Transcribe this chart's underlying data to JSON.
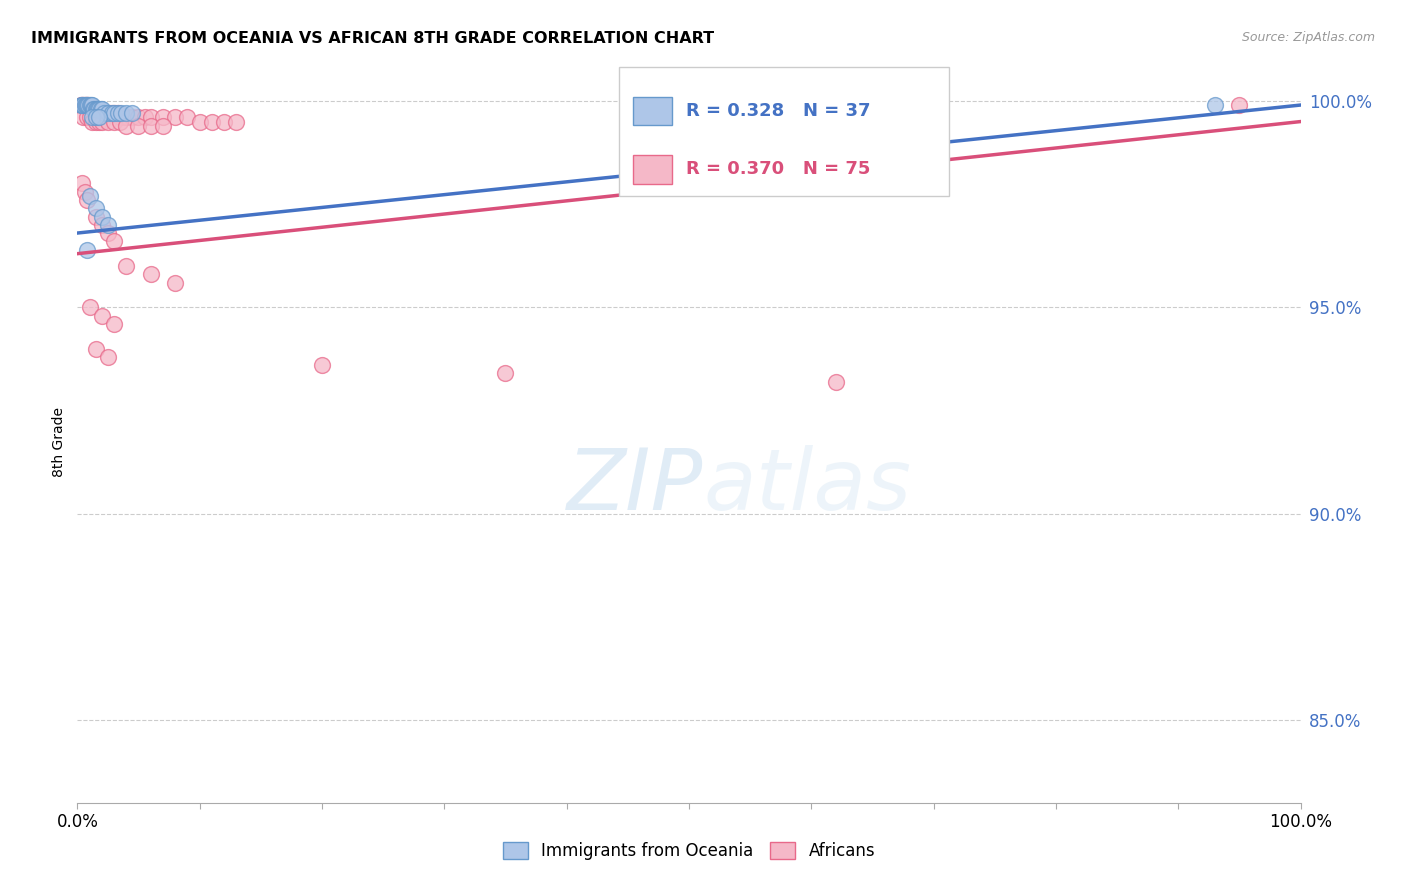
{
  "title": "IMMIGRANTS FROM OCEANIA VS AFRICAN 8TH GRADE CORRELATION CHART",
  "source": "Source: ZipAtlas.com",
  "legend_label1": "Immigrants from Oceania",
  "legend_label2": "Africans",
  "color_oceania_fill": "#aec6e8",
  "color_oceania_edge": "#6699cc",
  "color_african_fill": "#f5b8c8",
  "color_african_edge": "#e8698a",
  "color_line_oceania": "#4472c4",
  "color_line_african": "#d94f7a",
  "background_color": "#ffffff",
  "grid_color": "#cccccc",
  "xlim": [
    0.0,
    1.0
  ],
  "ylim": [
    0.83,
    1.005
  ],
  "oceania_x": [
    0.003,
    0.004,
    0.005,
    0.006,
    0.007,
    0.008,
    0.009,
    0.01,
    0.011,
    0.012,
    0.013,
    0.014,
    0.015,
    0.016,
    0.017,
    0.018,
    0.019,
    0.02,
    0.022,
    0.025,
    0.028,
    0.03,
    0.033,
    0.036,
    0.04,
    0.045,
    0.012,
    0.015,
    0.018,
    0.01,
    0.015,
    0.02,
    0.025,
    0.008,
    0.62,
    0.93
  ],
  "oceania_y": [
    0.999,
    0.999,
    0.999,
    0.999,
    0.999,
    0.999,
    0.999,
    0.999,
    0.999,
    0.999,
    0.998,
    0.998,
    0.998,
    0.998,
    0.998,
    0.998,
    0.998,
    0.998,
    0.997,
    0.997,
    0.997,
    0.997,
    0.997,
    0.997,
    0.997,
    0.997,
    0.996,
    0.996,
    0.996,
    0.977,
    0.974,
    0.972,
    0.97,
    0.964,
    0.999,
    0.999
  ],
  "african_x": [
    0.003,
    0.004,
    0.005,
    0.006,
    0.007,
    0.008,
    0.009,
    0.01,
    0.011,
    0.012,
    0.013,
    0.014,
    0.015,
    0.016,
    0.017,
    0.018,
    0.019,
    0.02,
    0.021,
    0.022,
    0.023,
    0.025,
    0.027,
    0.029,
    0.031,
    0.033,
    0.035,
    0.038,
    0.041,
    0.045,
    0.05,
    0.055,
    0.06,
    0.07,
    0.08,
    0.09,
    0.1,
    0.11,
    0.12,
    0.13,
    0.005,
    0.008,
    0.01,
    0.012,
    0.015,
    0.018,
    0.02,
    0.025,
    0.03,
    0.035,
    0.04,
    0.05,
    0.06,
    0.07,
    0.004,
    0.006,
    0.008,
    0.015,
    0.02,
    0.025,
    0.03,
    0.04,
    0.06,
    0.08,
    0.01,
    0.02,
    0.03,
    0.015,
    0.025,
    0.2,
    0.35,
    0.62,
    0.95
  ],
  "african_y": [
    0.999,
    0.999,
    0.999,
    0.999,
    0.999,
    0.999,
    0.999,
    0.998,
    0.998,
    0.998,
    0.998,
    0.998,
    0.998,
    0.998,
    0.997,
    0.997,
    0.997,
    0.997,
    0.997,
    0.997,
    0.997,
    0.997,
    0.997,
    0.997,
    0.997,
    0.997,
    0.996,
    0.996,
    0.996,
    0.996,
    0.996,
    0.996,
    0.996,
    0.996,
    0.996,
    0.996,
    0.995,
    0.995,
    0.995,
    0.995,
    0.996,
    0.996,
    0.996,
    0.995,
    0.995,
    0.995,
    0.995,
    0.995,
    0.995,
    0.995,
    0.994,
    0.994,
    0.994,
    0.994,
    0.98,
    0.978,
    0.976,
    0.972,
    0.97,
    0.968,
    0.966,
    0.96,
    0.958,
    0.956,
    0.95,
    0.948,
    0.946,
    0.94,
    0.938,
    0.936,
    0.934,
    0.932,
    0.999
  ],
  "line_oceania_x0": 0.0,
  "line_oceania_x1": 1.0,
  "line_oceania_y0": 0.968,
  "line_oceania_y1": 0.999,
  "line_african_x0": 0.0,
  "line_african_x1": 1.0,
  "line_african_y0": 0.963,
  "line_african_y1": 0.995
}
